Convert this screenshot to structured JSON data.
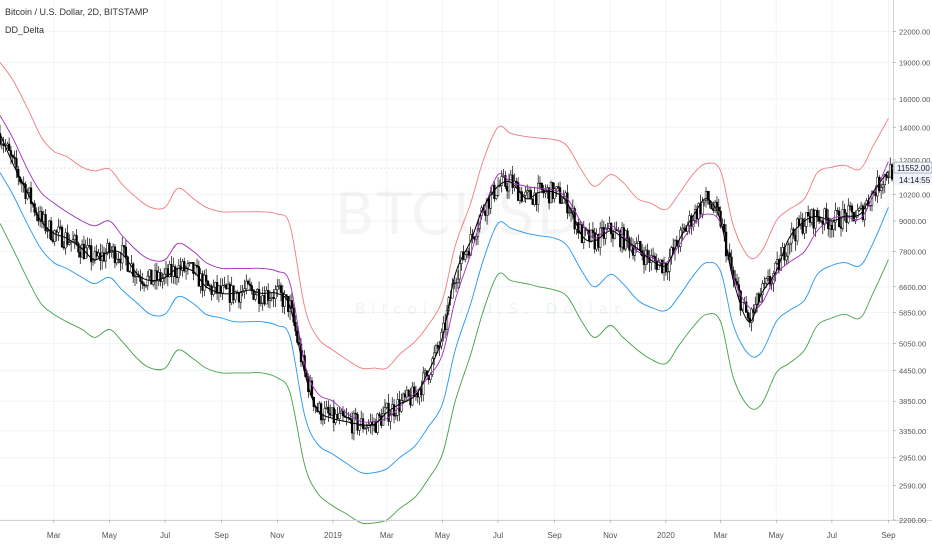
{
  "header": {
    "title": "Bitcoin / U.S. Dollar, 2D, BITSTAMP",
    "indicator": "DD_Delta"
  },
  "watermark": {
    "main": "BTCUSD",
    "sub": "Bitcoin / U.S. Dollar"
  },
  "price_tag": {
    "value": "11552.00",
    "countdown": "14:14:55",
    "color": "#f0f3fa"
  },
  "colors": {
    "red": "#ef7b80",
    "purple": "#9b2fb5",
    "black": "#000000",
    "blue": "#2196f3",
    "green": "#43a047",
    "candle": "#000000",
    "grid": "#f0f3f7",
    "axis_text": "#555555"
  },
  "chart_data": {
    "type": "line",
    "y_scale": "log",
    "ylim": [
      2200,
      25500
    ],
    "xlim": [
      "2018-01-01",
      "2020-09-06"
    ],
    "y_ticks": [
      2200,
      2590,
      2950,
      3350,
      3850,
      4450,
      5050,
      5850,
      6600,
      7800,
      9000,
      10200,
      12000,
      14000,
      16000,
      19000,
      22000
    ],
    "y_tick_labels": [
      "2200.00",
      "2590.00",
      "2950.00",
      "3350.00",
      "3850.00",
      "4450.00",
      "5050.00",
      "5850.00",
      "6600.00",
      "7800.00",
      "9000.00",
      "10200.00",
      "12000.00",
      "14000.00",
      "16000.00",
      "19000.00",
      "22000.00"
    ],
    "x_ticks": [
      {
        "date": "2018-03-01",
        "label": "Mar"
      },
      {
        "date": "2018-05-01",
        "label": "May"
      },
      {
        "date": "2018-07-01",
        "label": "Jul"
      },
      {
        "date": "2018-09-01",
        "label": "Sep"
      },
      {
        "date": "2018-11-01",
        "label": "Nov"
      },
      {
        "date": "2019-01-01",
        "label": "2019"
      },
      {
        "date": "2019-03-01",
        "label": "Mar"
      },
      {
        "date": "2019-05-01",
        "label": "May"
      },
      {
        "date": "2019-07-01",
        "label": "Jul"
      },
      {
        "date": "2019-09-01",
        "label": "Sep"
      },
      {
        "date": "2019-11-01",
        "label": "Nov"
      },
      {
        "date": "2020-01-01",
        "label": "2020"
      },
      {
        "date": "2020-03-01",
        "label": "Mar"
      },
      {
        "date": "2020-05-01",
        "label": "May"
      },
      {
        "date": "2020-07-01",
        "label": "Jul"
      },
      {
        "date": "2020-09-01",
        "label": "Sep"
      }
    ],
    "current_price": 11552,
    "x": [
      "2018-01-01",
      "2018-01-15",
      "2018-02-01",
      "2018-02-15",
      "2018-03-01",
      "2018-03-15",
      "2018-04-01",
      "2018-04-15",
      "2018-05-01",
      "2018-05-15",
      "2018-06-01",
      "2018-06-15",
      "2018-07-01",
      "2018-07-15",
      "2018-08-01",
      "2018-08-15",
      "2018-09-01",
      "2018-09-15",
      "2018-10-01",
      "2018-10-15",
      "2018-11-01",
      "2018-11-15",
      "2018-12-01",
      "2018-12-15",
      "2019-01-01",
      "2019-01-15",
      "2019-02-01",
      "2019-02-15",
      "2019-03-01",
      "2019-03-15",
      "2019-04-01",
      "2019-04-15",
      "2019-05-01",
      "2019-05-15",
      "2019-06-01",
      "2019-06-15",
      "2019-07-01",
      "2019-07-15",
      "2019-08-01",
      "2019-08-15",
      "2019-09-01",
      "2019-09-15",
      "2019-10-01",
      "2019-10-15",
      "2019-11-01",
      "2019-11-15",
      "2019-12-01",
      "2019-12-15",
      "2020-01-01",
      "2020-01-15",
      "2020-02-01",
      "2020-02-15",
      "2020-03-01",
      "2020-03-15",
      "2020-04-01",
      "2020-04-15",
      "2020-05-01",
      "2020-05-15",
      "2020-06-01",
      "2020-06-15",
      "2020-07-01",
      "2020-07-15",
      "2020-08-01",
      "2020-08-15",
      "2020-09-01"
    ],
    "series": [
      {
        "color_key": "red",
        "values": [
          19000,
          17500,
          15200,
          13400,
          12500,
          12200,
          11600,
          11400,
          11500,
          10700,
          10000,
          9600,
          9600,
          10500,
          10000,
          9600,
          9400,
          9400,
          9400,
          9400,
          9300,
          8800,
          6000,
          5200,
          4900,
          4700,
          4500,
          4500,
          4500,
          4800,
          5100,
          5500,
          6200,
          8000,
          9800,
          12000,
          14000,
          13600,
          13400,
          13300,
          13200,
          12800,
          11400,
          10600,
          11200,
          10800,
          10000,
          9800,
          9500,
          10200,
          11300,
          11800,
          11400,
          8800,
          7600,
          7800,
          9000,
          9500,
          10000,
          11300,
          11600,
          11700,
          11500,
          12800,
          14600
        ]
      },
      {
        "color_key": "purple",
        "values": [
          14800,
          13300,
          11400,
          10300,
          9800,
          9400,
          9000,
          8800,
          9000,
          8400,
          7800,
          7500,
          7500,
          8100,
          7800,
          7400,
          7200,
          7200,
          7200,
          7200,
          7100,
          6700,
          4600,
          4000,
          3850,
          3650,
          3500,
          3500,
          3550,
          3750,
          4000,
          4300,
          4800,
          6200,
          7700,
          9400,
          11200,
          10800,
          10600,
          10500,
          10400,
          10000,
          8900,
          8300,
          8800,
          8400,
          7800,
          7600,
          7400,
          8000,
          8900,
          9300,
          8900,
          6900,
          6000,
          6100,
          7000,
          7400,
          7800,
          8600,
          9100,
          9200,
          9100,
          10100,
          11900
        ]
      },
      {
        "color_key": "black",
        "values": [
          13600,
          11800,
          10200,
          9000,
          8500,
          8300,
          7900,
          7500,
          7800,
          7700,
          7000,
          6800,
          6900,
          7200,
          7100,
          6600,
          6400,
          6400,
          6500,
          6400,
          6400,
          6000,
          4400,
          3700,
          3550,
          3500,
          3450,
          3450,
          3650,
          3800,
          3950,
          4400,
          5200,
          7000,
          8200,
          9600,
          10600,
          10800,
          10000,
          10300,
          10300,
          9800,
          8400,
          8200,
          8600,
          8300,
          7900,
          7500,
          7300,
          8200,
          9300,
          10000,
          9000,
          6800,
          5600,
          6400,
          7100,
          8300,
          9000,
          9200,
          9000,
          9200,
          9300,
          10300,
          11400
        ]
      },
      {
        "color_key": "blue",
        "values": [
          11300,
          10200,
          8800,
          7900,
          7400,
          7200,
          6900,
          6700,
          6900,
          6500,
          6100,
          5800,
          5800,
          6300,
          6100,
          5800,
          5700,
          5600,
          5600,
          5600,
          5500,
          5200,
          3600,
          3150,
          3000,
          2880,
          2750,
          2750,
          2800,
          2950,
          3120,
          3400,
          3800,
          4900,
          6100,
          7500,
          8900,
          8700,
          8500,
          8400,
          8300,
          8000,
          7100,
          6600,
          7000,
          6700,
          6200,
          6000,
          5900,
          6300,
          7000,
          7400,
          7100,
          5500,
          4800,
          4850,
          5600,
          5900,
          6200,
          7000,
          7300,
          7400,
          7300,
          8100,
          9600
        ]
      },
      {
        "color_key": "green",
        "values": [
          8900,
          7900,
          6800,
          6100,
          5800,
          5600,
          5400,
          5200,
          5400,
          5100,
          4700,
          4500,
          4500,
          4900,
          4700,
          4500,
          4400,
          4400,
          4400,
          4400,
          4300,
          4000,
          2850,
          2500,
          2350,
          2270,
          2170,
          2170,
          2200,
          2320,
          2450,
          2660,
          3000,
          3850,
          4800,
          5900,
          7000,
          6800,
          6700,
          6600,
          6500,
          6300,
          5600,
          5200,
          5500,
          5200,
          4900,
          4700,
          4600,
          5000,
          5500,
          5800,
          5600,
          4300,
          3750,
          3800,
          4400,
          4600,
          4900,
          5500,
          5700,
          5800,
          5700,
          6400,
          7500
        ]
      }
    ]
  }
}
